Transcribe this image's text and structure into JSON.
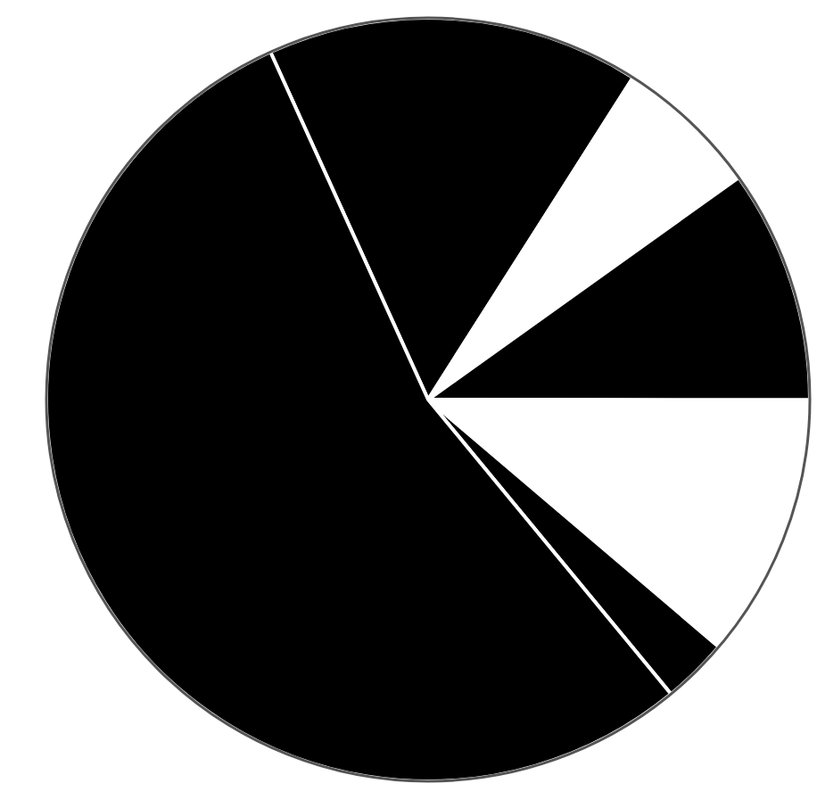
{
  "chart_data": {
    "type": "pie",
    "categories": [
      null,
      null,
      null,
      null,
      null,
      null
    ],
    "values": [
      15.8,
      6.1,
      9.9,
      11.2,
      2.8,
      54.2
    ],
    "colors": [
      "#000000",
      "#ffffff",
      "#000000",
      "#ffffff",
      "#000000",
      "#000000"
    ],
    "legend": false
  }
}
